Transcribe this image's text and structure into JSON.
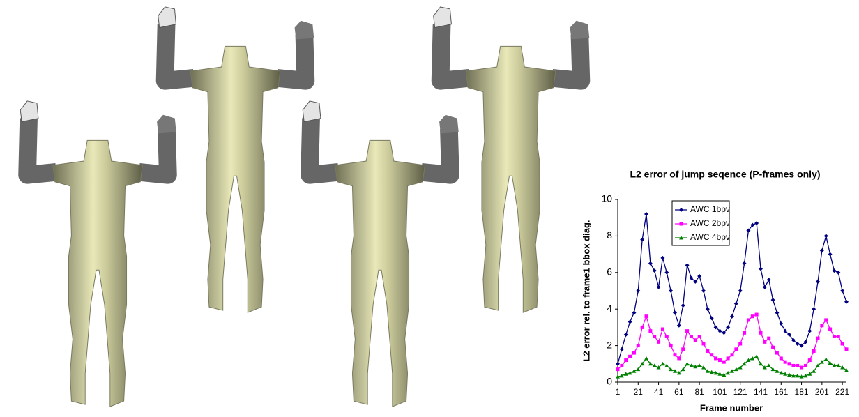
{
  "chart_data": {
    "type": "line",
    "title": "L2 error of jump seqence (P-frames only)",
    "x_label": "Frame number",
    "y_label": "L2 error rel. to frame1 bbox diag.",
    "x": [
      1,
      5,
      9,
      13,
      17,
      21,
      25,
      29,
      33,
      37,
      41,
      45,
      49,
      53,
      57,
      61,
      65,
      69,
      73,
      77,
      81,
      85,
      89,
      93,
      97,
      101,
      105,
      109,
      113,
      117,
      121,
      125,
      129,
      133,
      137,
      141,
      145,
      149,
      153,
      157,
      161,
      165,
      169,
      173,
      177,
      181,
      185,
      189,
      193,
      197,
      201,
      205,
      209,
      213,
      217,
      221,
      225
    ],
    "series": [
      {
        "name": "AWC 1bpv",
        "color": "#000080",
        "marker": "diamond",
        "values": [
          1.0,
          1.8,
          2.6,
          3.3,
          3.8,
          5.0,
          7.8,
          9.2,
          6.5,
          6.1,
          5.2,
          6.8,
          6.0,
          5.0,
          3.8,
          3.1,
          4.2,
          6.4,
          5.7,
          5.5,
          5.8,
          5.0,
          4.0,
          3.5,
          3.0,
          2.8,
          2.7,
          3.0,
          3.6,
          4.3,
          5.0,
          6.5,
          8.3,
          8.6,
          8.7,
          6.2,
          5.2,
          5.6,
          4.5,
          3.8,
          3.2,
          2.8,
          2.6,
          2.3,
          2.1,
          2.0,
          2.2,
          2.8,
          4.0,
          5.5,
          7.2,
          8.0,
          7.0,
          6.1,
          6.0,
          5.0,
          4.4
        ]
      },
      {
        "name": "AWC 2bpv",
        "color": "#ff00ff",
        "marker": "square",
        "values": [
          0.7,
          0.9,
          1.2,
          1.4,
          1.6,
          2.0,
          3.0,
          3.6,
          2.8,
          2.5,
          2.2,
          2.9,
          2.5,
          2.0,
          1.5,
          1.3,
          1.8,
          2.8,
          2.5,
          2.3,
          2.5,
          2.1,
          1.7,
          1.5,
          1.3,
          1.2,
          1.1,
          1.3,
          1.5,
          1.8,
          2.1,
          2.7,
          3.4,
          3.6,
          3.7,
          2.7,
          2.2,
          2.4,
          1.9,
          1.6,
          1.3,
          1.1,
          1.0,
          0.9,
          0.9,
          0.8,
          0.9,
          1.2,
          1.7,
          2.4,
          3.1,
          3.4,
          2.9,
          2.5,
          2.5,
          2.1,
          1.8
        ]
      },
      {
        "name": "AWC 4bpv",
        "color": "#008000",
        "marker": "triangle",
        "values": [
          0.3,
          0.35,
          0.45,
          0.5,
          0.6,
          0.7,
          1.0,
          1.3,
          1.0,
          0.9,
          0.8,
          1.0,
          0.9,
          0.7,
          0.6,
          0.5,
          0.7,
          1.0,
          0.9,
          0.85,
          0.9,
          0.8,
          0.6,
          0.55,
          0.5,
          0.45,
          0.4,
          0.5,
          0.6,
          0.7,
          0.8,
          1.0,
          1.2,
          1.3,
          1.4,
          1.0,
          0.8,
          0.9,
          0.7,
          0.6,
          0.5,
          0.45,
          0.4,
          0.35,
          0.35,
          0.3,
          0.35,
          0.45,
          0.6,
          0.9,
          1.1,
          1.25,
          1.05,
          0.9,
          0.9,
          0.8,
          0.65
        ]
      }
    ],
    "xlim": [
      1,
      225
    ],
    "xticks": [
      1,
      21,
      41,
      61,
      81,
      101,
      121,
      141,
      161,
      181,
      201,
      221
    ],
    "ylim": [
      0,
      10
    ],
    "yticks": [
      0,
      2,
      4,
      6,
      8,
      10
    ],
    "legend": "top-left",
    "grid": false
  }
}
